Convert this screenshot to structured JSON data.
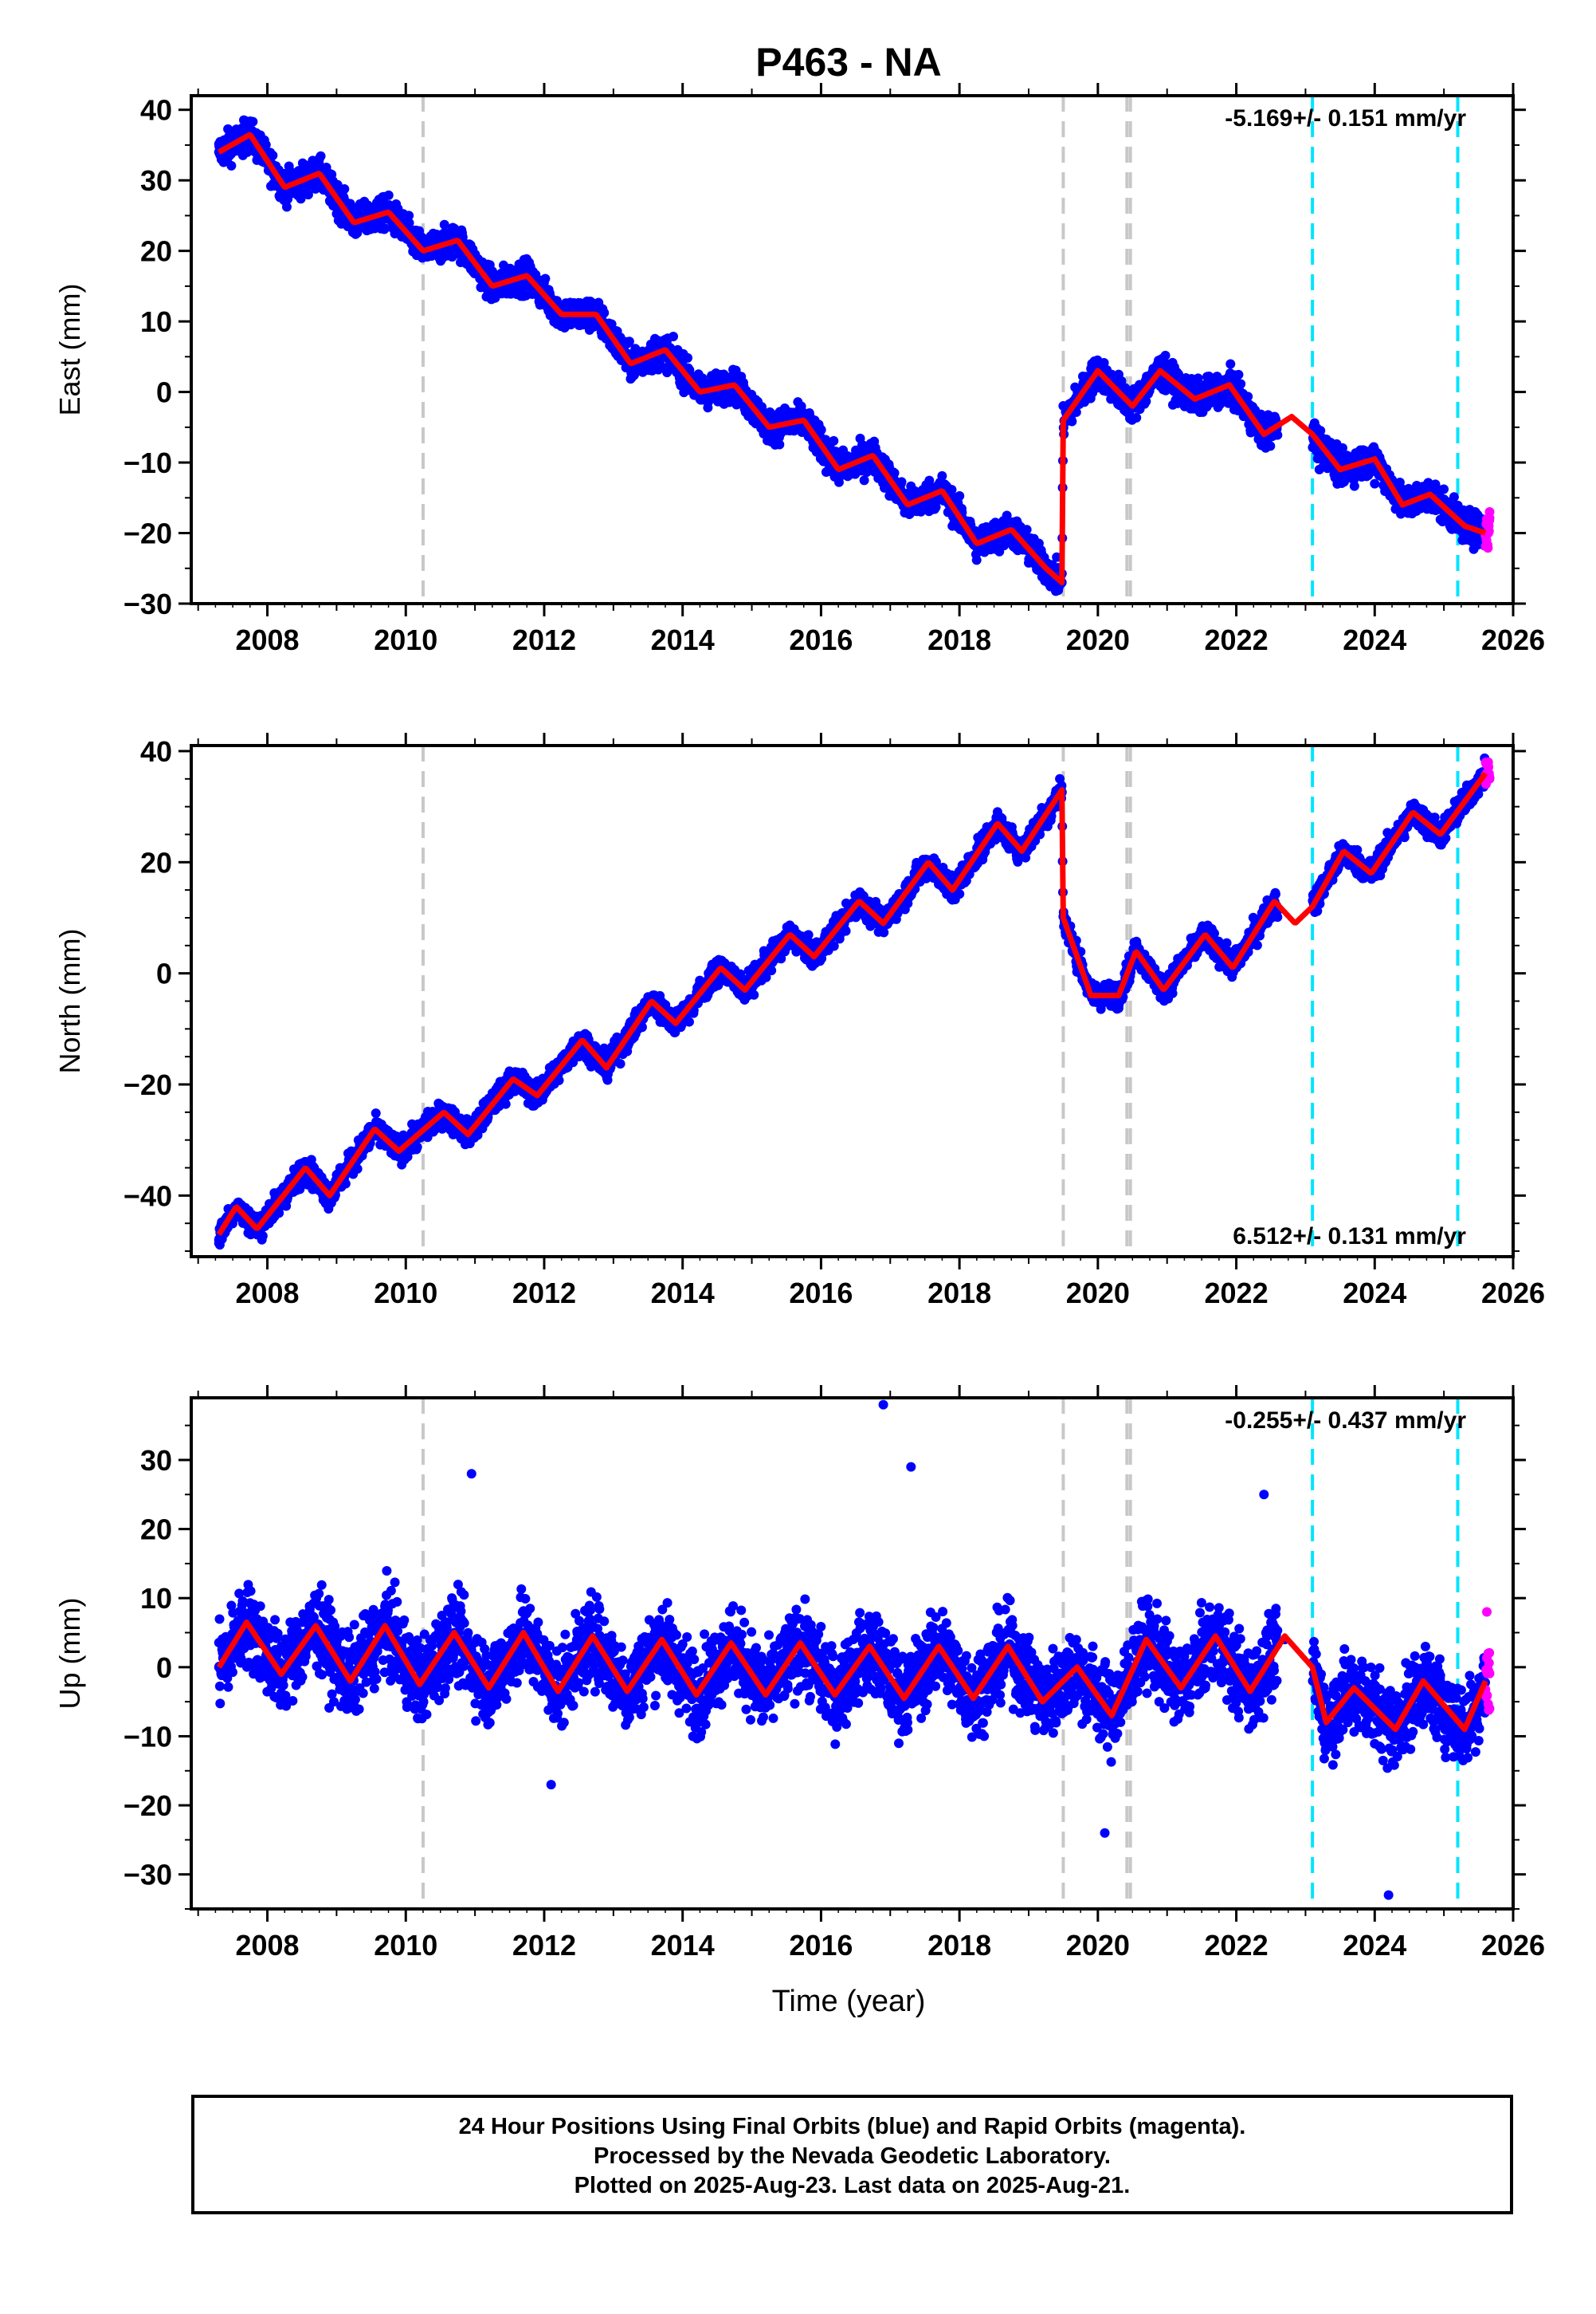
{
  "title": "P463 - NA",
  "xlabel": "Time (year)",
  "xticks": [
    "2008",
    "2010",
    "2012",
    "2014",
    "2016",
    "2018",
    "2020",
    "2022",
    "2024",
    "2026"
  ],
  "footer": {
    "line1": "24 Hour Positions Using Final Orbits (blue) and Rapid Orbits (magenta).",
    "line2": "Processed by the Nevada Geodetic Laboratory.",
    "line3": "Plotted on 2025-Aug-23. Last data on 2025-Aug-21."
  },
  "colors": {
    "final_orbits": "#0000ff",
    "rapid_orbits": "#ff00ff",
    "model_fit": "#ff0000",
    "equipment_change_line": "#c8c8c8",
    "earthquake_line": "#00e5ff"
  },
  "chart_data": [
    {
      "type": "scatter",
      "panel": "east",
      "ylabel": "East (mm)",
      "xlim": [
        2006.9,
        2026.0
      ],
      "ylim": [
        -30,
        42
      ],
      "yticks": [
        -30,
        -20,
        -10,
        0,
        10,
        20,
        30,
        40
      ],
      "rate_label": "-5.169+/- 0.151 mm/yr",
      "rate_label_position": "top-right",
      "rate_mm_per_yr": -5.169,
      "rate_sigma": 0.151,
      "grey_dashed_lines": [
        2010.25,
        2019.5,
        2020.42,
        2020.47
      ],
      "cyan_dashed_lines": [
        2023.1,
        2025.2
      ],
      "series": [
        {
          "name": "Final Orbits (blue)",
          "x": [
            2007.3,
            2007.75,
            2008.25,
            2008.75,
            2009.25,
            2009.75,
            2010.25,
            2010.75,
            2011.25,
            2011.75,
            2012.25,
            2012.75,
            2013.25,
            2013.75,
            2014.25,
            2014.75,
            2015.25,
            2015.75,
            2016.25,
            2016.75,
            2017.25,
            2017.75,
            2018.25,
            2018.75,
            2019.25,
            2019.48,
            2019.55,
            2020.0,
            2020.5,
            2020.9,
            2021.4,
            2021.9,
            2022.4,
            2023.2,
            2023.6,
            2024.0,
            2024.4,
            2024.8,
            2025.3,
            2025.5
          ],
          "y": [
            34,
            36,
            29,
            31,
            24,
            26,
            20,
            22,
            15,
            17,
            11,
            10,
            4,
            6,
            -1,
            1,
            -6,
            -4,
            -12,
            -9,
            -17,
            -14,
            -22,
            -20,
            -26,
            -27,
            -4,
            3,
            -2,
            3,
            -1,
            1,
            -6,
            -11,
            -9,
            -13,
            -17,
            -15,
            -19,
            -20
          ]
        },
        {
          "name": "Rapid Orbits (magenta)",
          "x": [
            2025.62,
            2025.64,
            2025.66
          ],
          "y": [
            -18,
            -19,
            -17
          ]
        },
        {
          "name": "Model fit (red)",
          "x": [
            2007.3,
            2007.75,
            2008.25,
            2008.75,
            2009.25,
            2009.75,
            2010.25,
            2010.75,
            2011.25,
            2011.75,
            2012.25,
            2012.75,
            2013.25,
            2013.75,
            2014.25,
            2014.75,
            2015.25,
            2015.75,
            2016.25,
            2016.75,
            2017.25,
            2017.75,
            2018.25,
            2018.75,
            2019.25,
            2019.48,
            2019.5,
            2020.0,
            2020.5,
            2020.9,
            2021.4,
            2021.9,
            2022.4,
            2022.8,
            2023.1,
            2023.5,
            2024.0,
            2024.4,
            2024.8,
            2025.3,
            2025.6
          ],
          "y": [
            34,
            36.5,
            29,
            31,
            24,
            25.5,
            20,
            21.5,
            15,
            16.5,
            11,
            11,
            4,
            6,
            0,
            1,
            -5,
            -4,
            -11,
            -9,
            -16,
            -14,
            -21.5,
            -19.5,
            -25,
            -27,
            -4,
            3,
            -2,
            3,
            -1,
            1,
            -6,
            -3.5,
            -6,
            -11,
            -9.5,
            -16,
            -14.5,
            -19,
            -20
          ]
        }
      ]
    },
    {
      "type": "scatter",
      "panel": "north",
      "ylabel": "North (mm)",
      "xlim": [
        2006.9,
        2026.0
      ],
      "ylim": [
        -51,
        41
      ],
      "yticks": [
        -40,
        -20,
        0,
        20,
        40
      ],
      "rate_label": "6.512+/- 0.131 mm/yr",
      "rate_label_position": "bottom-right",
      "rate_mm_per_yr": 6.512,
      "rate_sigma": 0.131,
      "grey_dashed_lines": [
        2010.25,
        2019.5,
        2020.42,
        2020.47
      ],
      "cyan_dashed_lines": [
        2023.1,
        2025.2
      ],
      "series": [
        {
          "name": "Final Orbits (blue)",
          "x": [
            2007.3,
            2007.55,
            2007.85,
            2008.55,
            2008.9,
            2009.55,
            2009.9,
            2010.55,
            2010.9,
            2011.55,
            2011.9,
            2012.55,
            2012.9,
            2013.55,
            2013.9,
            2014.55,
            2014.9,
            2015.55,
            2015.9,
            2016.55,
            2016.9,
            2017.55,
            2017.9,
            2018.55,
            2018.9,
            2019.45,
            2019.55,
            2019.9,
            2020.3,
            2020.55,
            2020.95,
            2021.55,
            2021.95,
            2022.55,
            2023.2,
            2023.55,
            2023.95,
            2024.55,
            2024.95,
            2025.5
          ],
          "y": [
            -48,
            -42,
            -47,
            -35,
            -40,
            -28,
            -33,
            -25,
            -29,
            -19,
            -23,
            -12,
            -17,
            -5,
            -10,
            1,
            -3,
            7,
            2,
            13,
            9,
            20,
            15,
            27,
            22,
            35,
            8,
            -4,
            -5,
            5,
            -3,
            7,
            1,
            14,
            16,
            22,
            18,
            29,
            25,
            35
          ]
        },
        {
          "name": "Rapid Orbits (magenta)",
          "x": [
            2025.62,
            2025.64,
            2025.66
          ],
          "y": [
            36,
            38,
            35
          ]
        },
        {
          "name": "Model fit (red)",
          "x": [
            2007.3,
            2007.55,
            2007.85,
            2008.55,
            2008.9,
            2009.55,
            2009.9,
            2010.55,
            2010.9,
            2011.55,
            2011.9,
            2012.55,
            2012.9,
            2013.55,
            2013.9,
            2014.55,
            2014.9,
            2015.55,
            2015.9,
            2016.55,
            2016.9,
            2017.55,
            2017.9,
            2018.55,
            2018.9,
            2019.48,
            2019.5,
            2019.9,
            2020.3,
            2020.55,
            2020.95,
            2021.55,
            2021.95,
            2022.55,
            2022.85,
            2023.1,
            2023.55,
            2023.95,
            2024.55,
            2024.95,
            2025.6
          ],
          "y": [
            -47,
            -42,
            -46,
            -35,
            -40,
            -28,
            -32,
            -25,
            -29,
            -19,
            -22,
            -12,
            -17,
            -5,
            -9,
            1,
            -3,
            7,
            3,
            13,
            9,
            20,
            15,
            27,
            22,
            33,
            10,
            -4,
            -4,
            4,
            -3,
            7,
            1,
            13,
            9,
            12,
            22,
            18,
            29,
            25,
            36
          ]
        }
      ]
    },
    {
      "type": "scatter",
      "panel": "up",
      "ylabel": "Up (mm)",
      "xlim": [
        2006.9,
        2026.0
      ],
      "ylim": [
        -35,
        39
      ],
      "yticks": [
        -30,
        -20,
        -10,
        0,
        10,
        20,
        30
      ],
      "rate_label": "-0.255+/- 0.437 mm/yr",
      "rate_label_position": "top-right",
      "rate_mm_per_yr": -0.255,
      "rate_sigma": 0.437,
      "grey_dashed_lines": [
        2010.25,
        2019.5,
        2020.42,
        2020.47
      ],
      "cyan_dashed_lines": [
        2023.1,
        2025.2
      ],
      "series": [
        {
          "name": "Final Orbits (blue)",
          "x": [
            2007.3,
            2007.7,
            2008.2,
            2008.7,
            2009.2,
            2009.7,
            2010.2,
            2010.7,
            2011.2,
            2011.7,
            2012.2,
            2012.7,
            2013.2,
            2013.7,
            2014.2,
            2014.7,
            2015.2,
            2015.7,
            2016.2,
            2016.7,
            2017.2,
            2017.7,
            2018.2,
            2018.7,
            2019.2,
            2019.7,
            2020.2,
            2020.7,
            2021.2,
            2021.7,
            2022.2,
            2022.7,
            2023.3,
            2023.7,
            2024.3,
            2024.7,
            2025.3,
            2016.9,
            2017.3,
            2010.95,
            2020.1,
            2024.2,
            2012.1,
            2022.4
          ],
          "y": [
            0,
            7,
            -1,
            6,
            -2,
            6,
            -2,
            5,
            -3,
            5,
            -3,
            4,
            -3,
            4,
            -4,
            3,
            -4,
            3,
            -4,
            3,
            -4,
            3,
            -4,
            3,
            -5,
            0,
            -7,
            4,
            -3,
            4,
            -3,
            4,
            -8,
            -2,
            -9,
            -2,
            -9,
            38,
            29,
            28,
            -24,
            -33,
            -17,
            25
          ]
        },
        {
          "name": "Rapid Orbits (magenta)",
          "x": [
            2025.62,
            2025.64,
            2025.66
          ],
          "y": [
            8,
            2,
            -6
          ]
        },
        {
          "name": "Model fit (red)",
          "x": [
            2007.3,
            2007.7,
            2008.2,
            2008.7,
            2009.2,
            2009.7,
            2010.2,
            2010.7,
            2011.2,
            2011.7,
            2012.2,
            2012.7,
            2013.2,
            2013.7,
            2014.2,
            2014.7,
            2015.2,
            2015.7,
            2016.2,
            2016.7,
            2017.2,
            2017.7,
            2018.2,
            2018.7,
            2019.2,
            2019.7,
            2020.2,
            2020.7,
            2021.2,
            2021.7,
            2022.2,
            2022.7,
            2023.1,
            2023.3,
            2023.7,
            2024.3,
            2024.7,
            2025.3,
            2025.6
          ],
          "y": [
            0,
            6.5,
            -1,
            6,
            -2,
            6,
            -2.5,
            5,
            -3,
            5,
            -3.5,
            4.5,
            -3.5,
            4,
            -4,
            3.5,
            -4,
            3.5,
            -4,
            3,
            -4.5,
            3,
            -4.5,
            3,
            -5,
            0,
            -7,
            4,
            -3,
            4.5,
            -3.5,
            4.5,
            0,
            -8,
            -3,
            -9,
            -2,
            -9,
            -2
          ]
        }
      ]
    }
  ]
}
